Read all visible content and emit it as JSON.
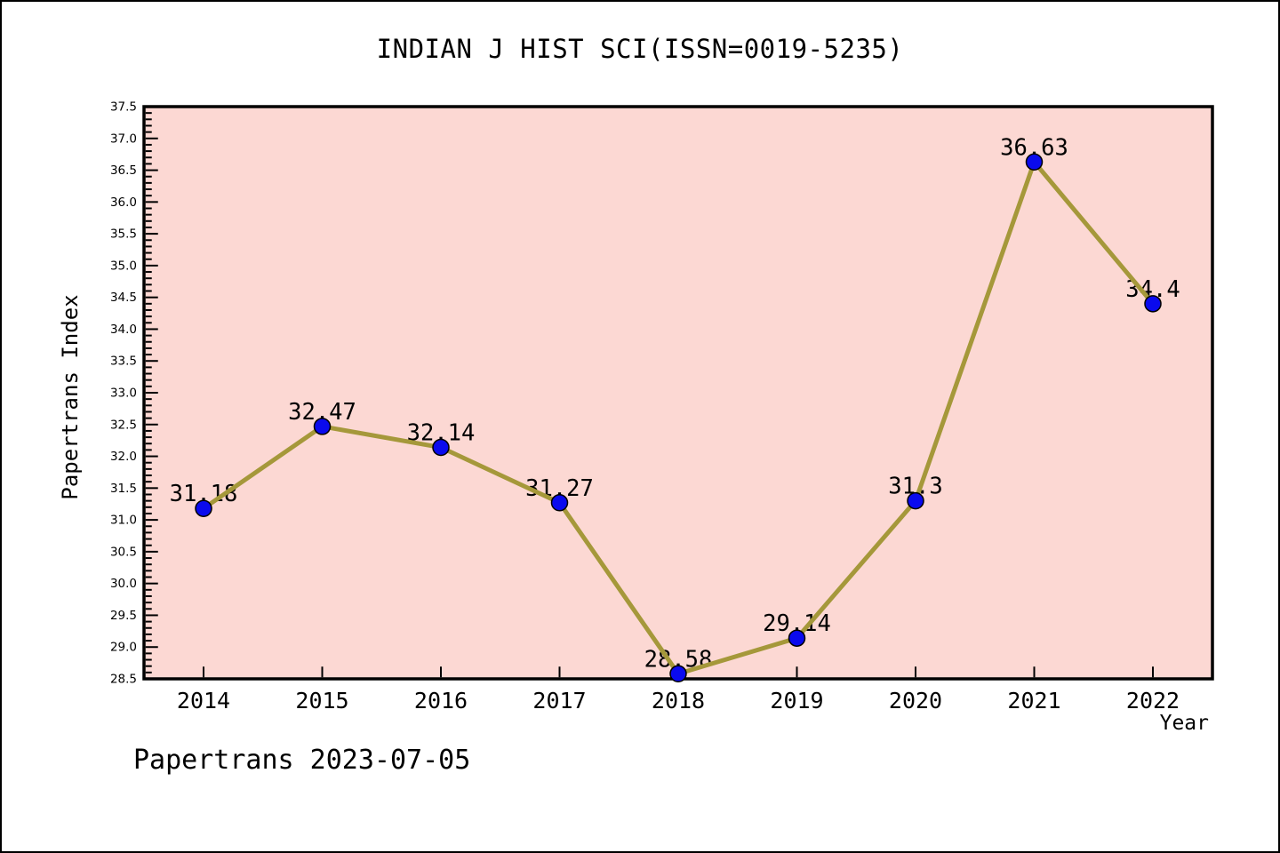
{
  "page": {
    "footer": "Papertrans 2023-07-05"
  },
  "chart_data": {
    "type": "line",
    "title": "INDIAN J HIST SCI(ISSN=0019-5235)",
    "xlabel": "Year",
    "ylabel": "Papertrans Index",
    "x": [
      "2014",
      "2015",
      "2016",
      "2017",
      "2018",
      "2019",
      "2020",
      "2021",
      "2022"
    ],
    "series": [
      {
        "name": "Papertrans Index",
        "values": [
          31.18,
          32.47,
          32.14,
          31.27,
          28.58,
          29.14,
          31.3,
          36.63,
          34.4
        ]
      }
    ],
    "point_labels": [
      "31.18",
      "32.47",
      "32.14",
      "31.27",
      "28.58",
      "29.14",
      "31.3",
      "36.63",
      "34.4"
    ],
    "ylim": [
      28.5,
      37.5
    ],
    "y_major_step": 0.5,
    "y_minor_step": 0.1,
    "grid": false,
    "legend": "none",
    "colors": {
      "plot_bg": "#FCD8D3",
      "line": "#A5983A",
      "marker": "#0A0AEE",
      "axis": "#000000",
      "text": "#000000"
    }
  }
}
